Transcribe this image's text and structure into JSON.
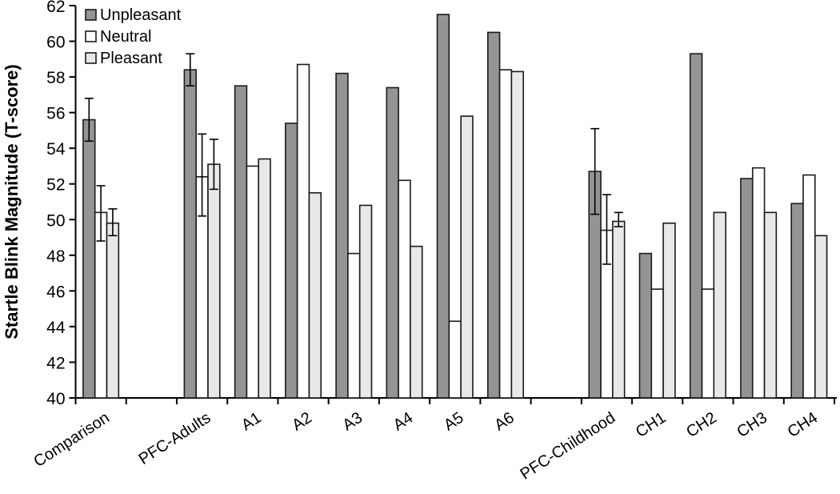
{
  "chart_data": {
    "type": "bar",
    "title": "",
    "xlabel": "",
    "ylabel": "Startle Blink Magnitude (T-score)",
    "ylim": [
      40,
      62
    ],
    "ytick_step": 2,
    "grid": false,
    "legend_position": "top-left",
    "background_color": "#ffffff",
    "bar_outline_color": "#1a1a1a",
    "series_names": [
      "Unpleasant",
      "Neutral",
      "Pleasant"
    ],
    "series_colors": [
      "#949494",
      "#ffffff",
      "#e8e8e8"
    ],
    "slot_count": 15,
    "categories": [
      {
        "label": "Comparison",
        "slot": 0,
        "values": [
          55.6,
          50.4,
          49.8
        ],
        "error_low": [
          54.4,
          48.8,
          49.1
        ],
        "error_high": [
          56.8,
          51.9,
          50.6
        ]
      },
      {
        "label": "PFC-Adults",
        "slot": 2,
        "values": [
          58.4,
          52.4,
          53.1
        ],
        "error_low": [
          57.5,
          50.2,
          51.7
        ],
        "error_high": [
          59.3,
          54.8,
          54.5
        ]
      },
      {
        "label": "A1",
        "slot": 3,
        "values": [
          57.5,
          53.0,
          53.4
        ]
      },
      {
        "label": "A2",
        "slot": 4,
        "values": [
          55.4,
          58.7,
          51.5
        ]
      },
      {
        "label": "A3",
        "slot": 5,
        "values": [
          58.2,
          48.1,
          50.8
        ]
      },
      {
        "label": "A4",
        "slot": 6,
        "values": [
          57.4,
          52.2,
          48.5
        ]
      },
      {
        "label": "A5",
        "slot": 7,
        "values": [
          61.5,
          44.3,
          55.8
        ]
      },
      {
        "label": "A6",
        "slot": 8,
        "values": [
          60.5,
          58.4,
          58.3
        ]
      },
      {
        "label": "PFC-Childhood",
        "slot": 10,
        "values": [
          52.7,
          49.4,
          49.9
        ],
        "error_low": [
          50.3,
          47.5,
          49.6
        ],
        "error_high": [
          55.1,
          51.4,
          50.4
        ]
      },
      {
        "label": "CH1",
        "slot": 11,
        "values": [
          48.1,
          46.1,
          49.8
        ]
      },
      {
        "label": "CH2",
        "slot": 12,
        "values": [
          59.3,
          46.1,
          50.4
        ]
      },
      {
        "label": "CH3",
        "slot": 13,
        "values": [
          52.3,
          52.9,
          50.4
        ]
      },
      {
        "label": "CH4",
        "slot": 14,
        "values": [
          50.9,
          52.5,
          49.1
        ]
      }
    ]
  }
}
